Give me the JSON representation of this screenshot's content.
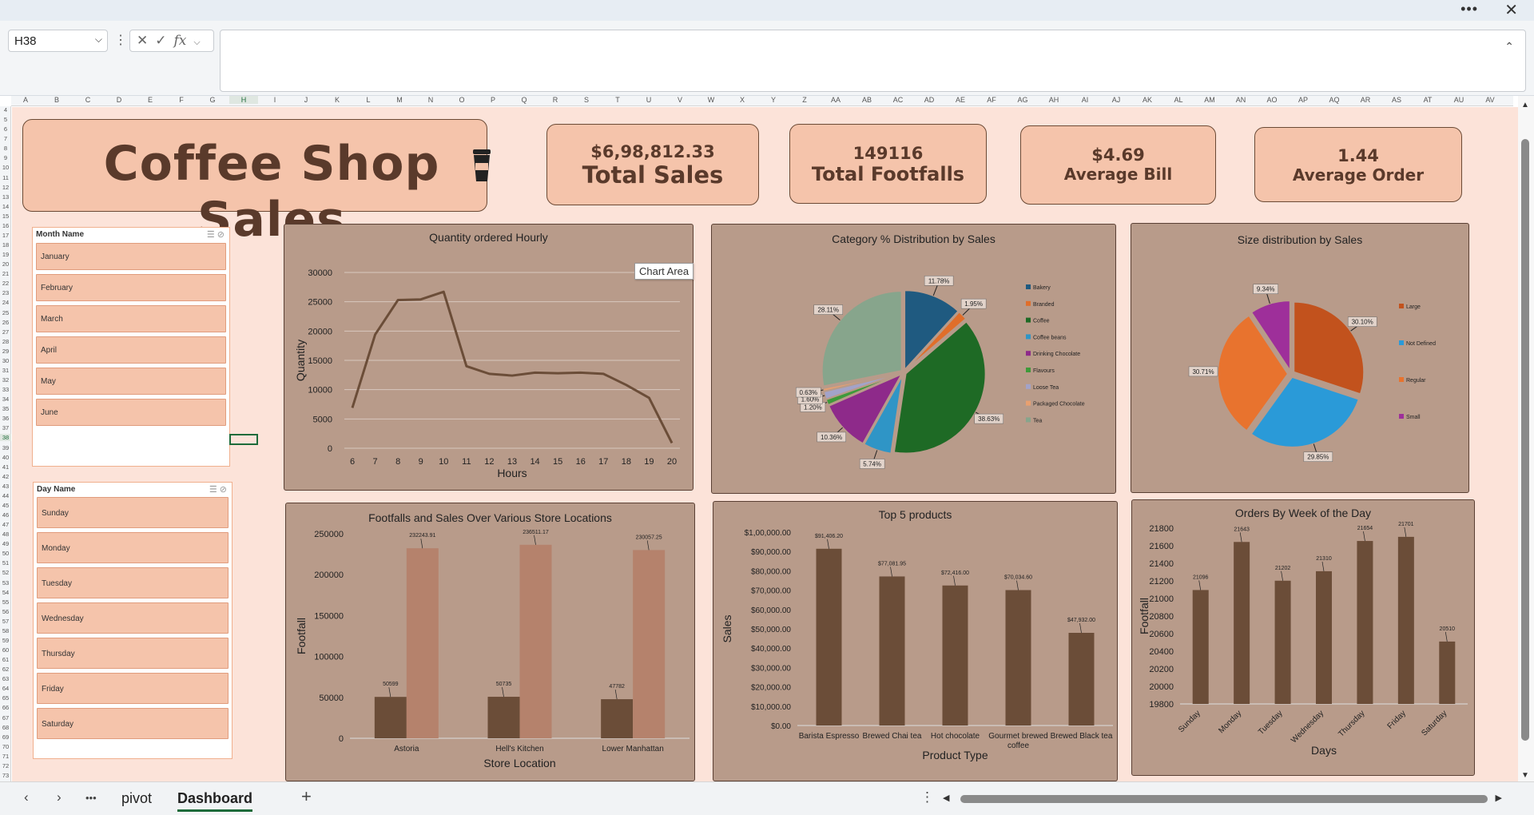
{
  "window": {
    "more_label": "•••",
    "close_label": "✕"
  },
  "formula_bar": {
    "name_box": "H38",
    "fx_label": "fx",
    "value": ""
  },
  "columns": [
    "A",
    "B",
    "C",
    "D",
    "E",
    "F",
    "G",
    "H",
    "I",
    "J",
    "K",
    "L",
    "M",
    "N",
    "O",
    "P",
    "Q",
    "R",
    "S",
    "T",
    "U",
    "V",
    "W",
    "X",
    "Y",
    "Z",
    "AA",
    "AB",
    "AC",
    "AD",
    "AE",
    "AF",
    "AG",
    "AH",
    "AI",
    "AJ",
    "AK",
    "AL",
    "AM",
    "AN",
    "AO",
    "AP",
    "AQ",
    "AR",
    "AS",
    "AT",
    "AU",
    "AV"
  ],
  "rows_start": 4,
  "rows_end": 73,
  "selected_cell": "H38",
  "dashboard": {
    "title": "Coffee Shop Sales",
    "kpis": [
      {
        "value": "$6,98,812.33",
        "label": "Total Sales"
      },
      {
        "value": "149116",
        "label": "Total Footfalls"
      },
      {
        "value": "$4.69",
        "label": "Average Bill"
      },
      {
        "value": "1.44",
        "label": "Average Order"
      }
    ],
    "month_slicer": {
      "header": "Month Name",
      "items": [
        "January",
        "February",
        "March",
        "April",
        "May",
        "June"
      ]
    },
    "day_slicer": {
      "header": "Day Name",
      "items": [
        "Sunday",
        "Monday",
        "Tuesday",
        "Wednesday",
        "Thursday",
        "Friday",
        "Saturday"
      ]
    },
    "tooltip": "Chart Area"
  },
  "colors": {
    "bar_dark": "#6b4d38",
    "bar_light": "#b5826c",
    "panel": "#b89b8a",
    "kpi": "#f5c4ab",
    "canvas": "#fce3d9",
    "line": "#6b4d38"
  },
  "chart_data": [
    {
      "type": "line",
      "title": "Quantity ordered Hourly",
      "xlabel": "Hours",
      "ylabel": "Quantity",
      "x": [
        6,
        7,
        8,
        9,
        10,
        11,
        12,
        13,
        14,
        15,
        16,
        17,
        18,
        19,
        20
      ],
      "values": [
        6900,
        19400,
        25300,
        25400,
        26700,
        14000,
        12700,
        12400,
        12900,
        12800,
        12900,
        12700,
        10800,
        8600,
        900
      ],
      "ylim": [
        0,
        30000
      ],
      "yticks": [
        0,
        5000,
        10000,
        15000,
        20000,
        25000,
        30000
      ]
    },
    {
      "type": "pie",
      "title": "Category % Distribution by Sales",
      "categories": [
        "Bakery",
        "Branded",
        "Coffee",
        "Coffee beans",
        "Drinking Chocolate",
        "Flavours",
        "Loose Tea",
        "Packaged Chocolate",
        "Tea"
      ],
      "values": [
        11.78,
        1.95,
        38.63,
        5.74,
        10.36,
        1.2,
        1.6,
        0.63,
        28.11
      ],
      "labels": [
        "11.78%",
        "1.95%",
        "38.63%",
        "5.74%",
        "10.36%",
        "1.20%",
        "1.60%",
        "0.63%",
        "28.11%"
      ],
      "colors": [
        "#1f5a80",
        "#e06e2a",
        "#1e6a25",
        "#2f95c6",
        "#8e2a8a",
        "#3e9a3a",
        "#a3a3c9",
        "#e8a070",
        "#87a58c"
      ]
    },
    {
      "type": "pie",
      "title": "Size distribution by Sales",
      "categories": [
        "Large",
        "Not Defined",
        "Regular",
        "Small"
      ],
      "values": [
        30.1,
        29.85,
        30.71,
        9.34
      ],
      "labels": [
        "30.10%",
        "29.85%",
        "30.71%",
        "9.34%"
      ],
      "colors": [
        "#c2521d",
        "#2a9ad8",
        "#e8732e",
        "#9e2f9a"
      ]
    },
    {
      "type": "bar",
      "title": "Footfalls and Sales Over Various Store Locations",
      "xlabel": "Store Location",
      "ylabel": "Footfall",
      "categories": [
        "Astoria",
        "Hell's Kitchen",
        "Lower Manhattan"
      ],
      "series": [
        {
          "values": [
            50599,
            50735,
            47782
          ],
          "labels": [
            "50599",
            "50735",
            "47782"
          ]
        },
        {
          "values": [
            232243.91,
            236511.17,
            230057.25
          ],
          "labels": [
            "232243.91",
            "236511.17",
            "230057.25"
          ]
        }
      ],
      "ylim": [
        0,
        250000
      ],
      "yticks": [
        0,
        50000,
        100000,
        150000,
        200000,
        250000
      ]
    },
    {
      "type": "bar",
      "title": "Top 5  products",
      "xlabel": "Product Type",
      "ylabel": "Sales",
      "categories": [
        "Barista Espresso",
        "Brewed Chai tea",
        "Hot chocolate",
        "Gourmet brewed coffee",
        "Brewed Black tea"
      ],
      "values": [
        91406.2,
        77081.95,
        72416.0,
        70034.6,
        47932.0
      ],
      "labels": [
        "$91,406.20",
        "$77,081.95",
        "$72,416.00",
        "$70,034.60",
        "$47,932.00"
      ],
      "ylim": [
        0,
        100000
      ],
      "yticks": [
        "$0.00",
        "$10,000.00",
        "$20,000.00",
        "$30,000.00",
        "$40,000.00",
        "$50,000.00",
        "$60,000.00",
        "$70,000.00",
        "$80,000.00",
        "$90,000.00",
        "$1,00,000.00"
      ]
    },
    {
      "type": "bar",
      "title": "Orders By Week of the Day",
      "xlabel": "Days",
      "ylabel": "Footfall",
      "categories": [
        "Sunday",
        "Monday",
        "Tuesday",
        "Wednesday",
        "Thursday",
        "Friday",
        "Saturday"
      ],
      "values": [
        21096,
        21643,
        21202,
        21310,
        21654,
        21701,
        20510
      ],
      "ylim": [
        19800,
        21800
      ],
      "yticks": [
        19800,
        20000,
        20200,
        20400,
        20600,
        20800,
        21000,
        21200,
        21400,
        21600,
        21800
      ]
    }
  ],
  "sheets": {
    "tabs": [
      "pivot",
      "Dashboard"
    ],
    "active": "Dashboard",
    "add_label": "+",
    "more_label": "•••"
  }
}
